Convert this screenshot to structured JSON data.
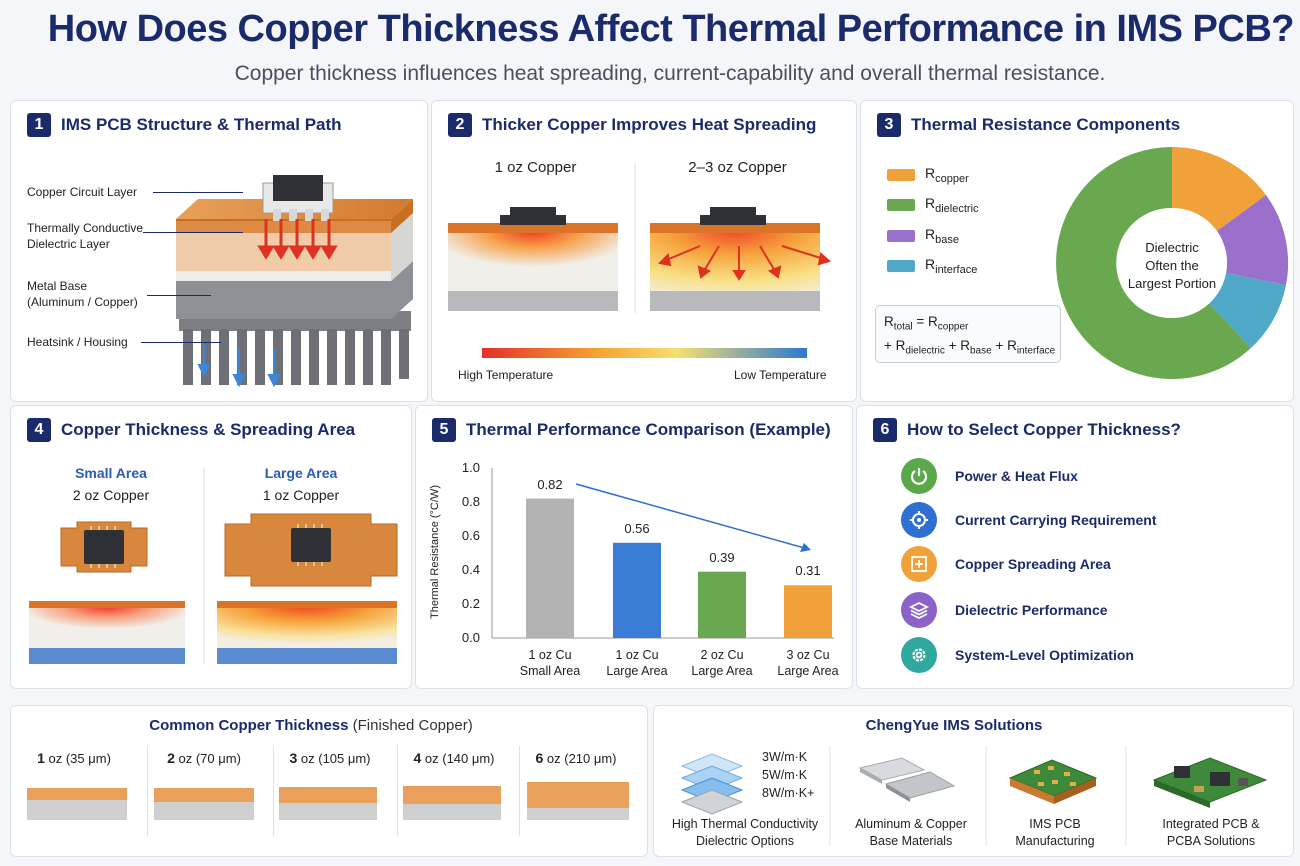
{
  "header": {
    "title": "How Does Copper Thickness Affect Thermal Performance in IMS PCB?",
    "subtitle": "Copper thickness influences heat spreading, current-capability and overall thermal resistance."
  },
  "panel1": {
    "num": "1",
    "title": "IMS PCB Structure & Thermal Path",
    "labels": {
      "copper": "Copper Circuit Layer",
      "dielectric1": "Thermally Conductive",
      "dielectric2": "Dielectric Layer",
      "metal1": "Metal Base",
      "metal2": "(Aluminum / Copper)",
      "heatsink": "Heatsink / Housing"
    }
  },
  "panel2": {
    "num": "2",
    "title": "Thicker Copper Improves Heat Spreading",
    "left_label": "1 oz Copper",
    "right_label": "2–3 oz Copper",
    "legend_high": "High Temperature",
    "legend_low": "Low Temperature"
  },
  "panel3": {
    "num": "3",
    "title": "Thermal Resistance Components",
    "legend": [
      {
        "main": "R",
        "sub": "copper",
        "color": "#f0a13a"
      },
      {
        "main": "R",
        "sub": "dielectric",
        "color": "#6aa84f"
      },
      {
        "main": "R",
        "sub": "base",
        "color": "#9b6fcc"
      },
      {
        "main": "R",
        "sub": "interface",
        "color": "#4fa8c8"
      }
    ],
    "donut_l1": "Dielectric",
    "donut_l2": "Often the",
    "donut_l3": "Largest Portion",
    "formula": {
      "r": "R",
      "total": "total",
      "eq": " = R",
      "copper": "copper",
      "plus1": "+ R",
      "dielectric": "dielectric",
      "plus2": " + R",
      "base": "base",
      "plus3": " + R",
      "interface": "interface"
    }
  },
  "panel4": {
    "num": "4",
    "title": "Copper Thickness & Spreading Area",
    "small_title": "Small Area",
    "small_sub": "2 oz Copper",
    "large_title": "Large Area",
    "large_sub": "1 oz Copper"
  },
  "panel5": {
    "num": "5",
    "title": "Thermal Performance Comparison (Example)",
    "ylabel": "Thermal Resistance (°C/W)",
    "ticks": [
      "1.0",
      "0.8",
      "0.6",
      "0.4",
      "0.2",
      "0.0"
    ],
    "bars": [
      {
        "label1": "1 oz Cu",
        "label2": "Small Area",
        "value": "0.82",
        "color": "#b3b3b3"
      },
      {
        "label1": "1 oz Cu",
        "label2": "Large Area",
        "value": "0.56",
        "color": "#3a7bd5"
      },
      {
        "label1": "2 oz Cu",
        "label2": "Large Area",
        "value": "0.39",
        "color": "#6aa84f"
      },
      {
        "label1": "3 oz Cu",
        "label2": "Large Area",
        "value": "0.31",
        "color": "#f0a13a"
      }
    ]
  },
  "chart_data": {
    "type": "bar",
    "categories": [
      "1 oz Cu Small Area",
      "1 oz Cu Large Area",
      "2 oz Cu Large Area",
      "3 oz Cu Large Area"
    ],
    "values": [
      0.82,
      0.56,
      0.39,
      0.31
    ],
    "title": "Thermal Performance Comparison (Example)",
    "ylabel": "Thermal Resistance (°C/W)",
    "ylim": [
      0,
      1.0
    ]
  },
  "panel6": {
    "num": "6",
    "title": "How to Select Copper Thickness?",
    "items": [
      {
        "label": "Power & Heat Flux",
        "color": "#5aa84a"
      },
      {
        "label": "Current Carrying Requirement",
        "color": "#2f6fd0"
      },
      {
        "label": "Copper Spreading Area",
        "color": "#f0a13a"
      },
      {
        "label": "Dielectric Performance",
        "color": "#8d62c8"
      },
      {
        "label": "System-Level Optimization",
        "color": "#2fa8a0"
      }
    ]
  },
  "panel7": {
    "title_bold": "Common Copper Thickness",
    "title_rest": " (Finished Copper)",
    "items": [
      {
        "oz": "1",
        "rest": " oz (35 μm)"
      },
      {
        "oz": "2",
        "rest": " oz (70 μm)"
      },
      {
        "oz": "3",
        "rest": " oz (105 μm)"
      },
      {
        "oz": "4",
        "rest": " oz (140 μm)"
      },
      {
        "oz": "6",
        "rest": " oz (210 μm)"
      }
    ]
  },
  "panel8": {
    "title": "ChengYue IMS Solutions",
    "k1": "3W/m·K",
    "k2": "5W/m·K",
    "k3": "8W/m·K+",
    "items": [
      {
        "l1": "High Thermal Conductivity",
        "l2": "Dielectric Options"
      },
      {
        "l1": "Aluminum & Copper",
        "l2": "Base Materials"
      },
      {
        "l1": "IMS PCB",
        "l2": "Manufacturing"
      },
      {
        "l1": "Integrated PCB &",
        "l2": "PCBA Solutions"
      }
    ]
  }
}
